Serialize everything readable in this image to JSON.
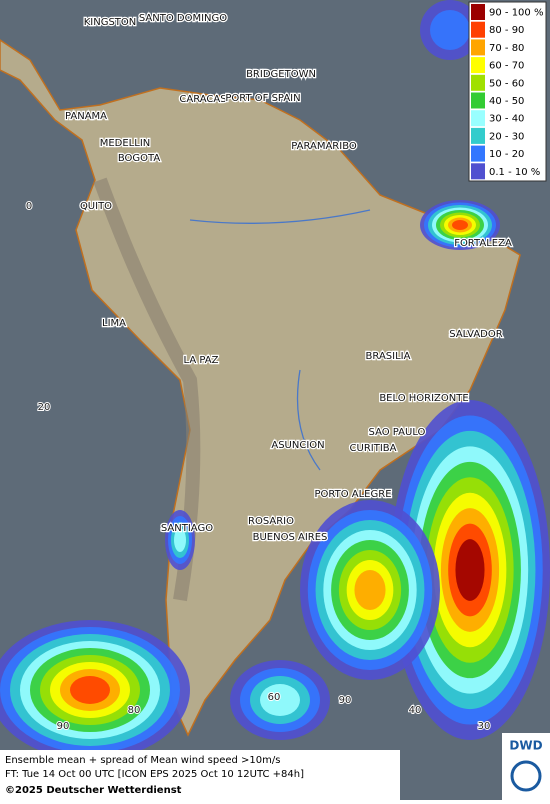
{
  "legend": {
    "entries": [
      {
        "label": "90 - 100 %",
        "color": "#9b0000"
      },
      {
        "label": "80 - 90",
        "color": "#ff4000"
      },
      {
        "label": "70 - 80",
        "color": "#ffa500"
      },
      {
        "label": "60 - 70",
        "color": "#ffff00"
      },
      {
        "label": "50 - 60",
        "color": "#a0e000"
      },
      {
        "label": "40 - 50",
        "color": "#33cc33"
      },
      {
        "label": "30 - 40",
        "color": "#99ffff"
      },
      {
        "label": "20 - 30",
        "color": "#33cccc"
      },
      {
        "label": "10 - 20",
        "color": "#3377ff"
      },
      {
        "label": "0.1 - 10 %",
        "color": "#5050d0"
      }
    ]
  },
  "cities": [
    "KINGSTON",
    "SANTO DOMINGO",
    "BRIDGETOWN",
    "CARACAS",
    "PORT OF SPAIN",
    "PANAMA",
    "MEDELLIN",
    "BOGOTA",
    "PARAMARIBO",
    "QUITO",
    "FORTALEZA",
    "LIMA",
    "SALVADOR",
    "BRASILIA",
    "LA PAZ",
    "BELO HORIZONTE",
    "SAO PAULO",
    "ASUNCION",
    "CURITIBA",
    "PORTO ALEGRE",
    "ROSARIO",
    "SANTIAGO",
    "BUENOS AIRES"
  ],
  "grid_labels": [
    "0",
    "20",
    "60",
    "90",
    "40",
    "30",
    "90",
    "80"
  ],
  "caption": {
    "line1": "Ensemble mean + spread of Mean wind speed >10m/s",
    "line2": "FT: Tue 14 Oct 00 UTC [ICON EPS 2025 Oct 10 12UTC +84h]",
    "line3": "©2025 Deutscher Wetterdienst"
  },
  "logo": "DWD"
}
